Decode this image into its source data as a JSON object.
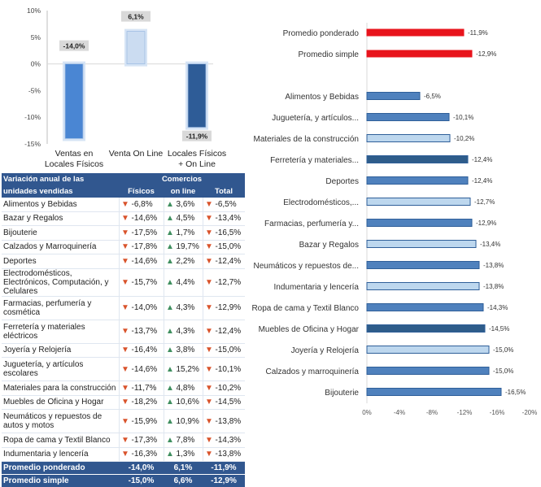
{
  "chart_data": [
    {
      "type": "bar",
      "categories": [
        "Ventas en Locales Físicos",
        "Venta On Line",
        "Locales Físicos + On Line"
      ],
      "values": [
        -14.0,
        6.1,
        -11.9
      ],
      "value_labels": [
        "-14,0%",
        "6,1%",
        "-11,9%"
      ],
      "ylim": [
        -15,
        10
      ],
      "yticks": [
        "-15%",
        "-10%",
        "-5%",
        "0%",
        "5%",
        "10%"
      ],
      "colors": [
        "#4a86d3",
        "#cbdcf1",
        "#2e5c97"
      ],
      "grid": false
    },
    {
      "type": "bar",
      "orientation": "horizontal",
      "categories": [
        "Promedio ponderado",
        "Promedio simple",
        "Alimentos y Bebidas",
        "Juguetería, y artículos...",
        "Materiales de la construcción",
        "Ferretería y materiales...",
        "Deportes",
        "Electrodomésticos,...",
        "Farmacias, perfumería y...",
        "Bazar y Regalos",
        "Neumáticos y repuestos de...",
        "Indumentaria y lencería",
        "Ropa de cama y Textil Blanco",
        "Muebles de Oficina y Hogar",
        "Joyería y Relojería",
        "Calzados y marroquinería",
        "Bijouterie"
      ],
      "values": [
        -11.9,
        -12.9,
        -6.5,
        -10.1,
        -10.2,
        -12.4,
        -12.4,
        -12.7,
        -12.9,
        -13.4,
        -13.8,
        -13.8,
        -14.3,
        -14.5,
        -15.0,
        -15.0,
        -16.5
      ],
      "value_labels": [
        "-11,9%",
        "-12,9%",
        "-6,5%",
        "-10,1%",
        "-10,2%",
        "-12,4%",
        "-12,4%",
        "-12,7%",
        "-12,9%",
        "-13,4%",
        "-13,8%",
        "-13,8%",
        "-14,3%",
        "-14,5%",
        "-15,0%",
        "-15,0%",
        "-16,5%"
      ],
      "colors": [
        "#e8141c",
        "#e8141c",
        "#4f81bd",
        "#4f81bd",
        "#bdd7ee",
        "#2e5c8a",
        "#4f81bd",
        "#bdd7ee",
        "#4f81bd",
        "#bdd7ee",
        "#4f81bd",
        "#bdd7ee",
        "#4f81bd",
        "#2e5c8a",
        "#bdd7ee",
        "#4f81bd",
        "#4f81bd"
      ],
      "xlim": [
        0,
        -20
      ],
      "xticks": [
        "0%",
        "-4%",
        "-8%",
        "-12%",
        "-16%",
        "-20%"
      ],
      "grid": false
    },
    {
      "type": "table",
      "header_title": "Variación anual de las unidades vendidas",
      "group_header": "Comercios",
      "columns": [
        "Físicos",
        "on line",
        "Total"
      ],
      "rows": [
        {
          "name": "Alimentos y Bebidas",
          "values": [
            "-6,8%",
            "3,6%",
            "-6,5%"
          ],
          "dirs": [
            "down",
            "up",
            "down"
          ]
        },
        {
          "name": "Bazar y Regalos",
          "values": [
            "-14,6%",
            "4,5%",
            "-13,4%"
          ],
          "dirs": [
            "down",
            "up",
            "down"
          ]
        },
        {
          "name": "Bijouterie",
          "values": [
            "-17,5%",
            "1,7%",
            "-16,5%"
          ],
          "dirs": [
            "down",
            "up",
            "down"
          ]
        },
        {
          "name": "Calzados y Marroquinería",
          "values": [
            "-17,8%",
            "19,7%",
            "-15,0%"
          ],
          "dirs": [
            "down",
            "up",
            "down"
          ]
        },
        {
          "name": "Deportes",
          "values": [
            "-14,6%",
            "2,2%",
            "-12,4%"
          ],
          "dirs": [
            "down",
            "up",
            "down"
          ]
        },
        {
          "name": "Electrodomésticos, Electrónicos, Computación, y Celulares",
          "values": [
            "-15,7%",
            "4,4%",
            "-12,7%"
          ],
          "dirs": [
            "down",
            "up",
            "down"
          ]
        },
        {
          "name": "Farmacias, perfumería y cosmética",
          "values": [
            "-14,0%",
            "4,3%",
            "-12,9%"
          ],
          "dirs": [
            "down",
            "up",
            "down"
          ]
        },
        {
          "name": "Ferretería y materiales eléctricos",
          "values": [
            "-13,7%",
            "4,3%",
            "-12,4%"
          ],
          "dirs": [
            "down",
            "up",
            "down"
          ]
        },
        {
          "name": "Joyería y Relojería",
          "values": [
            "-16,4%",
            "3,8%",
            "-15,0%"
          ],
          "dirs": [
            "down",
            "up",
            "down"
          ]
        },
        {
          "name": "Juguetería, y artículos escolares",
          "values": [
            "-14,6%",
            "15,2%",
            "-10,1%"
          ],
          "dirs": [
            "down",
            "up",
            "down"
          ]
        },
        {
          "name": "Materiales para la construcción",
          "values": [
            "-11,7%",
            "4,8%",
            "-10,2%"
          ],
          "dirs": [
            "down",
            "up",
            "down"
          ]
        },
        {
          "name": "Muebles de Oficina y Hogar",
          "values": [
            "-18,2%",
            "10,6%",
            "-14,5%"
          ],
          "dirs": [
            "down",
            "up",
            "down"
          ]
        },
        {
          "name": "Neumáticos y repuestos de autos y motos",
          "values": [
            "-15,9%",
            "10,9%",
            "-13,8%"
          ],
          "dirs": [
            "down",
            "up",
            "down"
          ]
        },
        {
          "name": "Ropa de cama y Textil Blanco",
          "values": [
            "-17,3%",
            "7,8%",
            "-14,3%"
          ],
          "dirs": [
            "down",
            "up",
            "down"
          ]
        },
        {
          "name": "Indumentaria y lencería",
          "values": [
            "-16,3%",
            "1,3%",
            "-13,8%"
          ],
          "dirs": [
            "down",
            "up",
            "down"
          ]
        }
      ],
      "totals": [
        {
          "name": "Promedio ponderado",
          "values": [
            "-14,0%",
            "6,1%",
            "-11,9%"
          ]
        },
        {
          "name": "Promedio simple",
          "values": [
            "-15,0%",
            "6,6%",
            "-12,9%"
          ]
        }
      ]
    }
  ]
}
